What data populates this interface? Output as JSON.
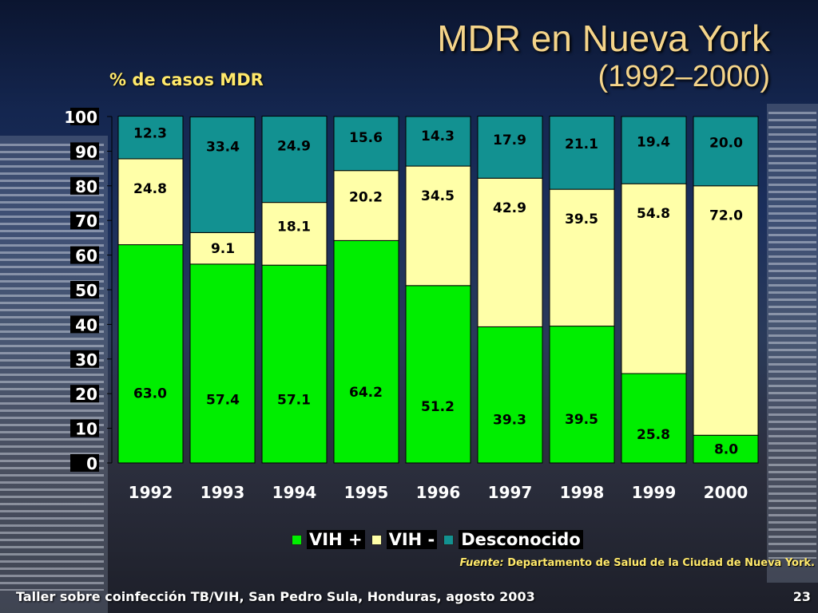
{
  "title": {
    "line1": "MDR en Nueva York",
    "line2": "(1992–2000)"
  },
  "source": {
    "label": "Fuente:",
    "text": "Departamento de Salud de la Ciudad de Nueva York."
  },
  "footer": {
    "left": "Taller sobre coinfección TB/VIH, San Pedro Sula, Honduras, agosto 2003",
    "right": "23"
  },
  "colors": {
    "vih_pos": "#00ee00",
    "vih_neg": "#ffffa8",
    "desconocido": "#129191",
    "title": "#f4d48a",
    "ylabel": "#ffe96b"
  },
  "chart_data": {
    "type": "bar",
    "stacked": true,
    "ylabel": "% de casos MDR",
    "ylim": [
      0,
      100
    ],
    "yticks": [
      "0",
      "10",
      "20",
      "30",
      "40",
      "50",
      "60",
      "70",
      "80",
      "90",
      "100"
    ],
    "categories": [
      "1992",
      "1993",
      "1994",
      "1995",
      "1996",
      "1997",
      "1998",
      "1999",
      "2000"
    ],
    "series": [
      {
        "name": "VIH +",
        "color": "#00ee00",
        "values": [
          63.0,
          57.4,
          57.1,
          64.2,
          51.2,
          39.3,
          39.5,
          25.8,
          8.0
        ],
        "labels": [
          "63.0",
          "57.4",
          "57.1",
          "64.2",
          "51.2",
          "39.3",
          "39.5",
          "25.8",
          "8.0"
        ]
      },
      {
        "name": "VIH -",
        "color": "#ffffa8",
        "values": [
          24.8,
          9.1,
          18.1,
          20.2,
          34.5,
          42.9,
          39.5,
          54.8,
          72.0
        ],
        "labels": [
          "24.8",
          "9.1",
          "18.1",
          "20.2",
          "34.5",
          "42.9",
          "39.5",
          "54.8",
          "72.0"
        ]
      },
      {
        "name": "Desconocido",
        "color": "#129191",
        "values": [
          12.3,
          33.4,
          24.9,
          15.6,
          14.3,
          17.9,
          21.1,
          19.4,
          20.0
        ],
        "labels": [
          "12.3",
          "33.4",
          "24.9",
          "15.6",
          "14.3",
          "17.9",
          "21.1",
          "19.4",
          "20.0"
        ]
      }
    ],
    "legend": "bottom"
  }
}
